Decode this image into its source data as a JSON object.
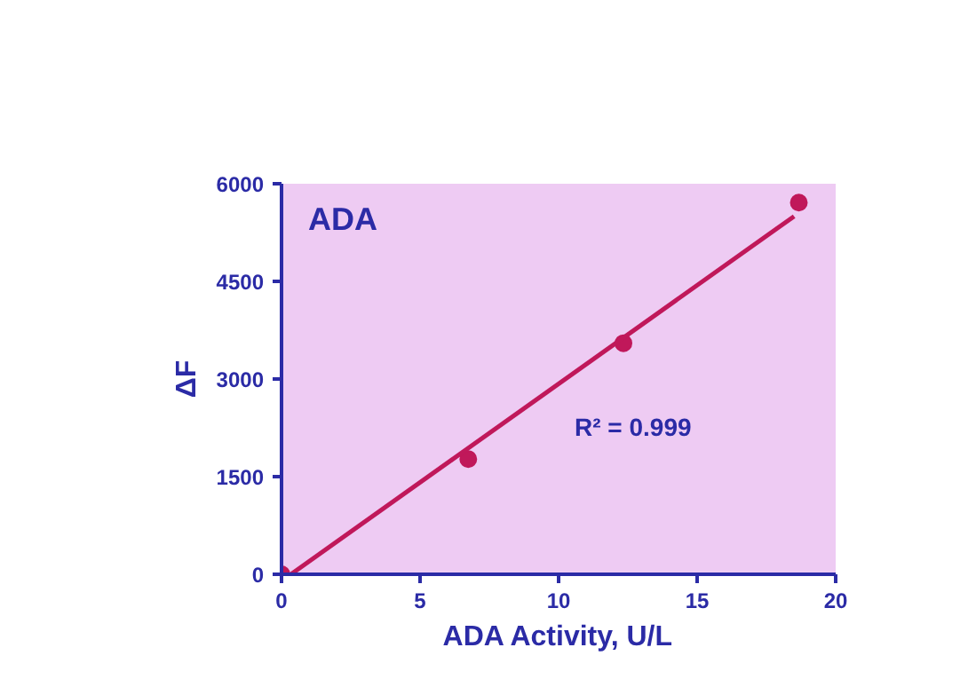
{
  "chart_data": {
    "type": "scatter",
    "xlabel": "ADA Activity, U/L",
    "ylabel": "ΔF",
    "xlim": [
      0,
      20
    ],
    "ylim": [
      0,
      6000
    ],
    "xticks": [
      0,
      5,
      10,
      15,
      20
    ],
    "yticks": [
      0,
      1500,
      3000,
      4500,
      6000
    ],
    "grid": false,
    "series": [
      {
        "color": "#c0185a",
        "marker": "circle",
        "x": [
          0,
          6.74,
          12.34,
          18.67
        ],
        "values": [
          0,
          1770,
          3550,
          5710
        ]
      },
      {
        "type": "line",
        "color": "#c0185a",
        "x": [
          0.34,
          18.5
        ],
        "values": [
          0,
          5500
        ]
      }
    ],
    "annotations": [
      "ADA",
      "R² = 0.999"
    ]
  }
}
